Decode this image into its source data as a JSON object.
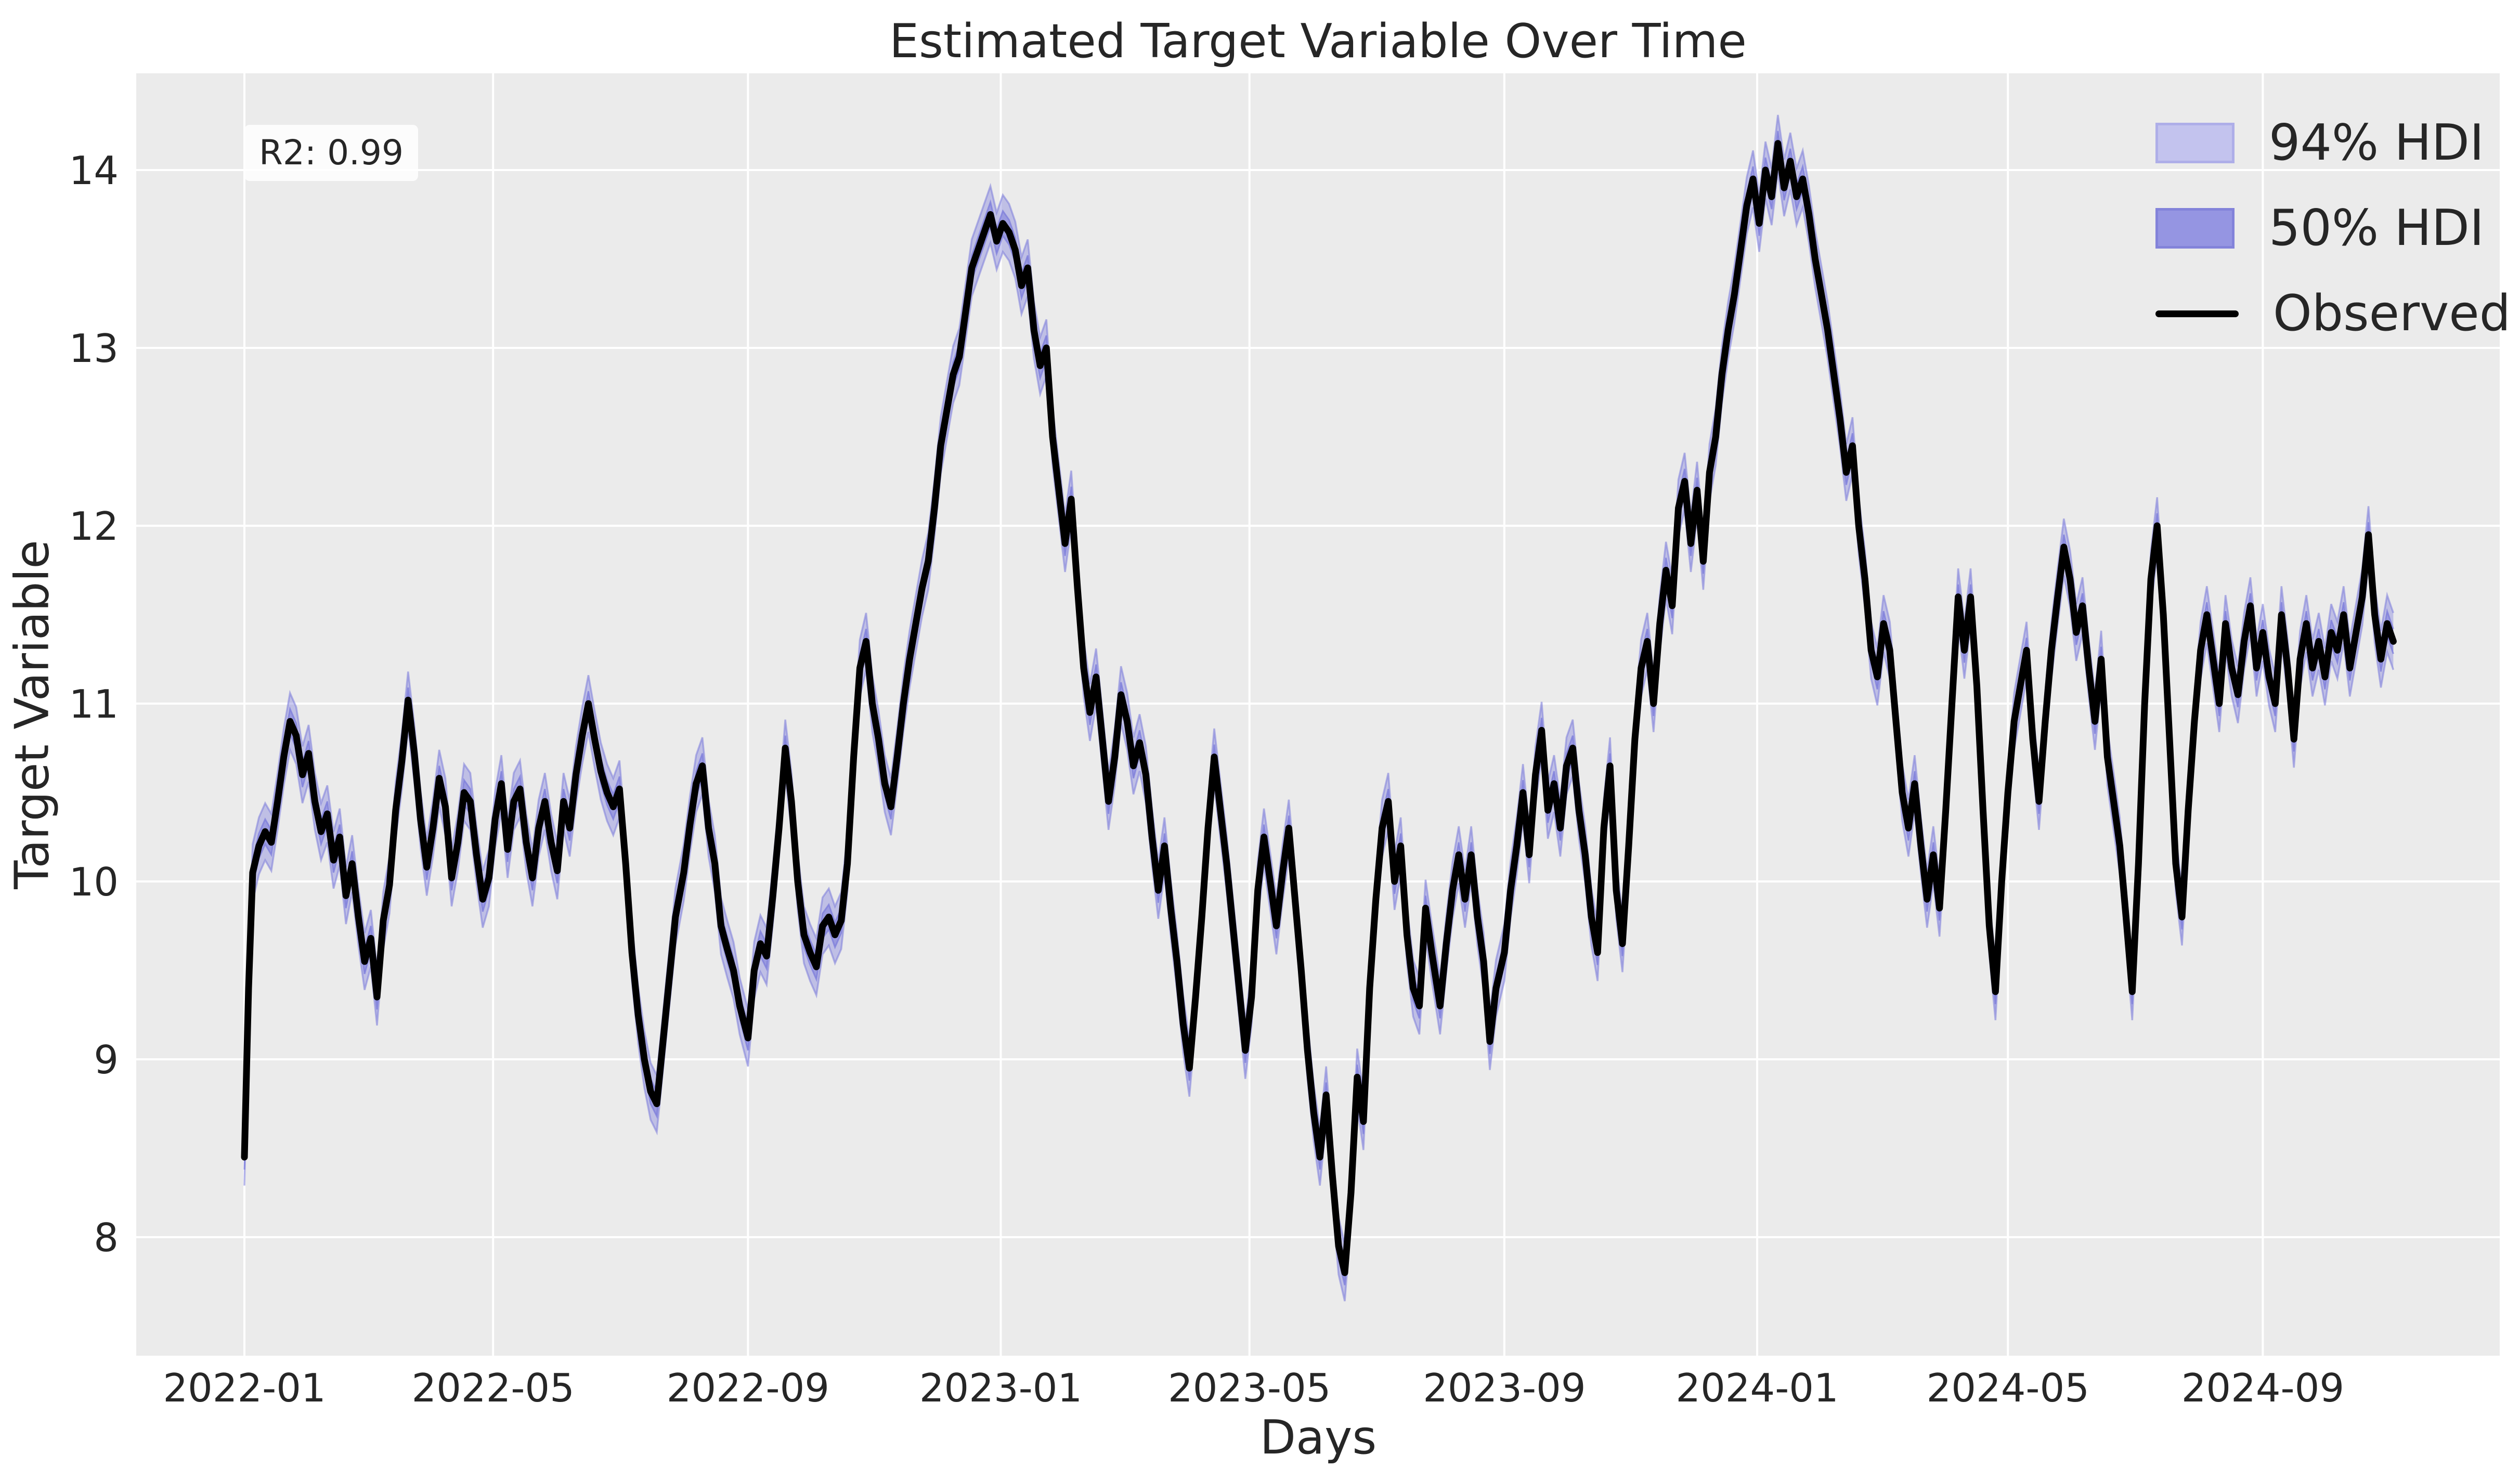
{
  "title": "Estimated Target Variable Over Time",
  "annotation": {
    "r2_label": "R2: 0.99"
  },
  "legend": {
    "position": "upper-right",
    "items": [
      {
        "label": "94% HDI",
        "type": "patch",
        "fill": "#c3c3ee",
        "edge": "#aeaee8"
      },
      {
        "label": "50% HDI",
        "type": "patch",
        "fill": "#9595e2",
        "edge": "#8383da"
      },
      {
        "label": "Observed",
        "type": "line",
        "color": "#000000"
      }
    ]
  },
  "chart_data": {
    "type": "line",
    "title": "Estimated Target Variable Over Time",
    "xlabel": "Days",
    "ylabel": "Target Variable",
    "grid": true,
    "background_color": "#ebebeb",
    "grid_color": "#ffffff",
    "text_color": "#262626",
    "ylim": [
      7.33,
      14.58
    ],
    "y_ticks": [
      8,
      9,
      10,
      11,
      12,
      13,
      14
    ],
    "x_ticks": [
      {
        "date": "2022-01-01",
        "label": "2022-01"
      },
      {
        "date": "2022-05-01",
        "label": "2022-05"
      },
      {
        "date": "2022-09-01",
        "label": "2022-09"
      },
      {
        "date": "2023-01-01",
        "label": "2023-01"
      },
      {
        "date": "2023-05-01",
        "label": "2023-05"
      },
      {
        "date": "2023-09-01",
        "label": "2023-09"
      },
      {
        "date": "2024-01-01",
        "label": "2024-01"
      },
      {
        "date": "2024-05-01",
        "label": "2024-05"
      },
      {
        "date": "2024-09-01",
        "label": "2024-09"
      }
    ],
    "series": [
      {
        "name": "Observed",
        "type": "line",
        "color": "#000000",
        "line_width": 13
      },
      {
        "name": "94% HDI",
        "type": "band",
        "half_width": 0.16,
        "fill": "rgba(124,124,219,0.40)",
        "edge": "rgba(124,124,219,0.55)"
      },
      {
        "name": "50% HDI",
        "type": "band",
        "half_width": 0.07,
        "fill": "rgba(124,124,219,0.55)",
        "edge": "rgba(124,124,219,0.75)"
      }
    ],
    "dates": [
      "2022-01-01",
      "2022-01-03",
      "2022-01-05",
      "2022-01-08",
      "2022-01-11",
      "2022-01-14",
      "2022-01-17",
      "2022-01-20",
      "2022-01-23",
      "2022-01-26",
      "2022-01-29",
      "2022-02-01",
      "2022-02-04",
      "2022-02-07",
      "2022-02-10",
      "2022-02-13",
      "2022-02-16",
      "2022-02-19",
      "2022-02-22",
      "2022-02-25",
      "2022-02-28",
      "2022-03-03",
      "2022-03-06",
      "2022-03-09",
      "2022-03-12",
      "2022-03-15",
      "2022-03-18",
      "2022-03-21",
      "2022-03-24",
      "2022-03-27",
      "2022-03-30",
      "2022-04-02",
      "2022-04-05",
      "2022-04-08",
      "2022-04-11",
      "2022-04-14",
      "2022-04-17",
      "2022-04-20",
      "2022-04-23",
      "2022-04-26",
      "2022-04-29",
      "2022-05-02",
      "2022-05-05",
      "2022-05-08",
      "2022-05-11",
      "2022-05-14",
      "2022-05-17",
      "2022-05-20",
      "2022-05-23",
      "2022-05-26",
      "2022-05-29",
      "2022-06-01",
      "2022-06-04",
      "2022-06-07",
      "2022-06-10",
      "2022-06-13",
      "2022-06-16",
      "2022-06-19",
      "2022-06-22",
      "2022-06-25",
      "2022-06-28",
      "2022-07-01",
      "2022-07-04",
      "2022-07-07",
      "2022-07-10",
      "2022-07-13",
      "2022-07-16",
      "2022-07-19",
      "2022-07-22",
      "2022-07-25",
      "2022-07-28",
      "2022-08-01",
      "2022-08-04",
      "2022-08-07",
      "2022-08-10",
      "2022-08-13",
      "2022-08-16",
      "2022-08-19",
      "2022-08-22",
      "2022-08-25",
      "2022-08-28",
      "2022-09-01",
      "2022-09-04",
      "2022-09-07",
      "2022-09-10",
      "2022-09-13",
      "2022-09-16",
      "2022-09-19",
      "2022-09-22",
      "2022-09-25",
      "2022-09-28",
      "2022-10-01",
      "2022-10-04",
      "2022-10-07",
      "2022-10-10",
      "2022-10-13",
      "2022-10-16",
      "2022-10-19",
      "2022-10-22",
      "2022-10-25",
      "2022-10-28",
      "2022-10-31",
      "2022-11-03",
      "2022-11-06",
      "2022-11-09",
      "2022-11-12",
      "2022-11-15",
      "2022-11-18",
      "2022-11-21",
      "2022-11-24",
      "2022-11-27",
      "2022-11-30",
      "2022-12-03",
      "2022-12-06",
      "2022-12-09",
      "2022-12-12",
      "2022-12-15",
      "2022-12-18",
      "2022-12-21",
      "2022-12-24",
      "2022-12-27",
      "2022-12-30",
      "2023-01-02",
      "2023-01-05",
      "2023-01-08",
      "2023-01-11",
      "2023-01-14",
      "2023-01-17",
      "2023-01-20",
      "2023-01-23",
      "2023-01-26",
      "2023-01-29",
      "2023-02-01",
      "2023-02-04",
      "2023-02-07",
      "2023-02-10",
      "2023-02-13",
      "2023-02-16",
      "2023-02-19",
      "2023-02-22",
      "2023-02-25",
      "2023-02-28",
      "2023-03-03",
      "2023-03-06",
      "2023-03-09",
      "2023-03-12",
      "2023-03-15",
      "2023-03-18",
      "2023-03-21",
      "2023-03-24",
      "2023-03-27",
      "2023-03-30",
      "2023-04-02",
      "2023-04-05",
      "2023-04-08",
      "2023-04-11",
      "2023-04-14",
      "2023-04-17",
      "2023-04-20",
      "2023-04-23",
      "2023-04-26",
      "2023-04-29",
      "2023-05-02",
      "2023-05-05",
      "2023-05-08",
      "2023-05-11",
      "2023-05-14",
      "2023-05-17",
      "2023-05-20",
      "2023-05-23",
      "2023-05-26",
      "2023-05-29",
      "2023-06-01",
      "2023-06-04",
      "2023-06-07",
      "2023-06-10",
      "2023-06-13",
      "2023-06-16",
      "2023-06-19",
      "2023-06-22",
      "2023-06-25",
      "2023-06-28",
      "2023-07-01",
      "2023-07-04",
      "2023-07-07",
      "2023-07-10",
      "2023-07-13",
      "2023-07-16",
      "2023-07-19",
      "2023-07-22",
      "2023-07-25",
      "2023-07-28",
      "2023-08-01",
      "2023-08-04",
      "2023-08-07",
      "2023-08-10",
      "2023-08-13",
      "2023-08-16",
      "2023-08-19",
      "2023-08-22",
      "2023-08-25",
      "2023-08-28",
      "2023-09-01",
      "2023-09-04",
      "2023-09-07",
      "2023-09-10",
      "2023-09-13",
      "2023-09-16",
      "2023-09-19",
      "2023-09-22",
      "2023-09-25",
      "2023-09-28",
      "2023-10-01",
      "2023-10-04",
      "2023-10-07",
      "2023-10-10",
      "2023-10-13",
      "2023-10-16",
      "2023-10-19",
      "2023-10-22",
      "2023-10-25",
      "2023-10-28",
      "2023-10-31",
      "2023-11-03",
      "2023-11-06",
      "2023-11-09",
      "2023-11-12",
      "2023-11-15",
      "2023-11-18",
      "2023-11-21",
      "2023-11-24",
      "2023-11-27",
      "2023-11-30",
      "2023-12-03",
      "2023-12-06",
      "2023-12-09",
      "2023-12-12",
      "2023-12-15",
      "2023-12-18",
      "2023-12-21",
      "2023-12-24",
      "2023-12-27",
      "2023-12-30",
      "2024-01-02",
      "2024-01-05",
      "2024-01-08",
      "2024-01-11",
      "2024-01-14",
      "2024-01-17",
      "2024-01-20",
      "2024-01-23",
      "2024-01-26",
      "2024-01-29",
      "2024-02-01",
      "2024-02-04",
      "2024-02-07",
      "2024-02-10",
      "2024-02-13",
      "2024-02-16",
      "2024-02-19",
      "2024-02-22",
      "2024-02-25",
      "2024-02-28",
      "2024-03-02",
      "2024-03-05",
      "2024-03-08",
      "2024-03-11",
      "2024-03-14",
      "2024-03-17",
      "2024-03-20",
      "2024-03-23",
      "2024-03-26",
      "2024-03-29",
      "2024-04-01",
      "2024-04-04",
      "2024-04-07",
      "2024-04-10",
      "2024-04-13",
      "2024-04-16",
      "2024-04-19",
      "2024-04-22",
      "2024-04-25",
      "2024-04-28",
      "2024-05-01",
      "2024-05-04",
      "2024-05-07",
      "2024-05-10",
      "2024-05-13",
      "2024-05-16",
      "2024-05-19",
      "2024-05-22",
      "2024-05-25",
      "2024-05-28",
      "2024-05-31",
      "2024-06-03",
      "2024-06-06",
      "2024-06-09",
      "2024-06-12",
      "2024-06-15",
      "2024-06-18",
      "2024-06-21",
      "2024-06-24",
      "2024-06-27",
      "2024-06-30",
      "2024-07-03",
      "2024-07-06",
      "2024-07-09",
      "2024-07-12",
      "2024-07-15",
      "2024-07-18",
      "2024-07-21",
      "2024-07-24",
      "2024-07-27",
      "2024-07-30",
      "2024-08-02",
      "2024-08-05",
      "2024-08-08",
      "2024-08-11",
      "2024-08-14",
      "2024-08-17",
      "2024-08-20",
      "2024-08-23",
      "2024-08-26",
      "2024-08-29",
      "2024-09-01",
      "2024-09-04",
      "2024-09-07",
      "2024-09-10",
      "2024-09-13",
      "2024-09-16",
      "2024-09-19",
      "2024-09-22",
      "2024-09-25",
      "2024-09-28",
      "2024-10-01",
      "2024-10-04",
      "2024-10-07",
      "2024-10-10",
      "2024-10-13",
      "2024-10-16",
      "2024-10-19",
      "2024-10-22",
      "2024-10-25",
      "2024-10-28",
      "2024-10-31",
      "2024-11-03"
    ],
    "observed": [
      8.45,
      9.4,
      10.05,
      10.2,
      10.28,
      10.22,
      10.45,
      10.7,
      10.9,
      10.82,
      10.6,
      10.72,
      10.45,
      10.28,
      10.38,
      10.12,
      10.25,
      9.92,
      10.1,
      9.8,
      9.55,
      9.68,
      9.35,
      9.78,
      9.98,
      10.4,
      10.68,
      11.02,
      10.72,
      10.35,
      10.08,
      10.3,
      10.58,
      10.42,
      10.02,
      10.22,
      10.5,
      10.45,
      10.15,
      9.9,
      10.02,
      10.35,
      10.55,
      10.18,
      10.45,
      10.52,
      10.22,
      10.02,
      10.3,
      10.45,
      10.22,
      10.06,
      10.45,
      10.3,
      10.6,
      10.82,
      11.0,
      10.8,
      10.62,
      10.5,
      10.42,
      10.52,
      10.1,
      9.6,
      9.25,
      9.0,
      8.82,
      8.75,
      9.1,
      9.45,
      9.8,
      10.05,
      10.32,
      10.55,
      10.65,
      10.3,
      10.1,
      9.75,
      9.62,
      9.5,
      9.3,
      9.12,
      9.5,
      9.65,
      9.58,
      9.92,
      10.3,
      10.75,
      10.45,
      10.0,
      9.7,
      9.6,
      9.52,
      9.75,
      9.8,
      9.7,
      9.78,
      10.1,
      10.7,
      11.2,
      11.35,
      11.0,
      10.8,
      10.55,
      10.42,
      10.7,
      11.0,
      11.25,
      11.45,
      11.65,
      11.8,
      12.1,
      12.45,
      12.65,
      12.85,
      12.95,
      13.2,
      13.45,
      13.55,
      13.65,
      13.75,
      13.6,
      13.7,
      13.65,
      13.55,
      13.35,
      13.45,
      13.1,
      12.9,
      13.0,
      12.5,
      12.2,
      11.9,
      12.15,
      11.65,
      11.2,
      10.95,
      11.15,
      10.8,
      10.45,
      10.7,
      11.05,
      10.9,
      10.65,
      10.78,
      10.6,
      10.25,
      9.95,
      10.2,
      9.85,
      9.55,
      9.2,
      8.95,
      9.35,
      9.8,
      10.3,
      10.7,
      10.4,
      10.1,
      9.75,
      9.4,
      9.05,
      9.35,
      9.95,
      10.25,
      10.0,
      9.75,
      10.05,
      10.3,
      9.9,
      9.5,
      9.05,
      8.7,
      8.45,
      8.8,
      8.35,
      7.95,
      7.8,
      8.25,
      8.9,
      8.65,
      9.4,
      9.9,
      10.3,
      10.45,
      10.0,
      10.2,
      9.7,
      9.4,
      9.3,
      9.85,
      9.6,
      9.3,
      9.65,
      9.95,
      10.15,
      9.9,
      10.15,
      9.8,
      9.55,
      9.1,
      9.4,
      9.6,
      9.95,
      10.2,
      10.5,
      10.15,
      10.6,
      10.85,
      10.4,
      10.55,
      10.3,
      10.65,
      10.75,
      10.4,
      10.15,
      9.8,
      9.6,
      10.3,
      10.65,
      9.95,
      9.65,
      10.2,
      10.8,
      11.2,
      11.35,
      11.0,
      11.45,
      11.75,
      11.55,
      12.1,
      12.25,
      11.9,
      12.2,
      11.8,
      12.3,
      12.5,
      12.85,
      13.1,
      13.3,
      13.55,
      13.8,
      13.95,
      13.7,
      14.0,
      13.85,
      14.15,
      13.9,
      14.05,
      13.85,
      13.95,
      13.75,
      13.5,
      13.3,
      13.1,
      12.85,
      12.6,
      12.3,
      12.45,
      12.0,
      11.7,
      11.3,
      11.15,
      11.45,
      11.3,
      10.9,
      10.5,
      10.3,
      10.55,
      10.2,
      9.9,
      10.15,
      9.85,
      10.4,
      11.0,
      11.6,
      11.3,
      11.6,
      11.1,
      10.4,
      9.75,
      9.38,
      10.0,
      10.5,
      10.9,
      11.1,
      11.3,
      10.8,
      10.45,
      10.9,
      11.3,
      11.6,
      11.88,
      11.7,
      11.4,
      11.55,
      11.2,
      10.9,
      11.25,
      10.7,
      10.45,
      10.2,
      9.8,
      9.38,
      10.1,
      11.0,
      11.7,
      12.0,
      11.5,
      10.8,
      10.1,
      9.8,
      10.4,
      10.9,
      11.3,
      11.5,
      11.25,
      11.0,
      11.45,
      11.2,
      11.05,
      11.35,
      11.55,
      11.2,
      11.4,
      11.15,
      11.0,
      11.5,
      11.2,
      10.8,
      11.25,
      11.45,
      11.2,
      11.35,
      11.15,
      11.4,
      11.3,
      11.5,
      11.2,
      11.4,
      11.6,
      11.95,
      11.5,
      11.25,
      11.45,
      11.35
    ]
  }
}
